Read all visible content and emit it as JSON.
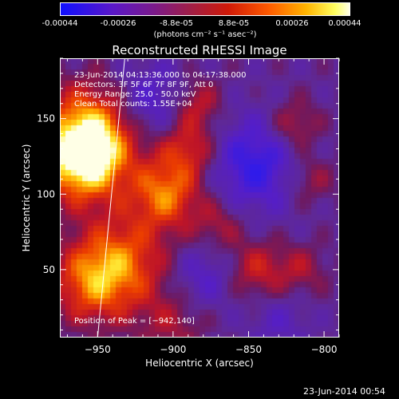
{
  "colorbar": {
    "ticks": [
      "-0.00044",
      "-0.00026",
      "-8.8e-05",
      "8.8e-05",
      "0.00026",
      "0.00044"
    ],
    "units": "(photons cm⁻² s⁻¹ asec⁻²)"
  },
  "chart_data": {
    "type": "heatmap",
    "title": "Reconstructed RHESSI Image",
    "xlabel": "Heliocentric X (arcsec)",
    "ylabel": "Heliocentric Y (arcsec)",
    "xlim": [
      -975,
      -790
    ],
    "ylim": [
      5,
      190
    ],
    "x_ticks": [
      -950,
      -900,
      -850,
      -800
    ],
    "y_ticks": [
      50,
      100,
      150
    ],
    "x_tick_labels": [
      "−950",
      "−900",
      "−850",
      "−800"
    ],
    "y_tick_labels": [
      "50",
      "100",
      "150"
    ],
    "colorscale_range": [
      -0.00044,
      0.00044
    ],
    "annotations": [
      "23-Jun-2014 04:13:36.000 to 04:17:38.000",
      "Detectors: 3F 5F 6F 7F 8F 9F, Att 0",
      "Energy Range: 25.0 - 50.0 keV",
      "Clean    Total counts: 1.55E+04"
    ],
    "peak_label": "Position of Peak = [−942,140]",
    "peak_position": [
      -942,
      140
    ],
    "limb_x_at": [
      [
        -932,
        190
      ],
      [
        -950,
        5
      ]
    ],
    "blobs": [
      {
        "x": -955,
        "y": 140,
        "r": 22,
        "v": 1.0
      },
      {
        "x": -960,
        "y": 120,
        "r": 18,
        "v": 0.85
      },
      {
        "x": -935,
        "y": 55,
        "r": 22,
        "v": 0.7
      },
      {
        "x": -955,
        "y": 40,
        "r": 18,
        "v": 0.55
      },
      {
        "x": -905,
        "y": 100,
        "r": 16,
        "v": 0.75
      },
      {
        "x": -890,
        "y": 130,
        "r": 14,
        "v": 0.55
      },
      {
        "x": -885,
        "y": 160,
        "r": 12,
        "v": 0.45
      },
      {
        "x": -870,
        "y": 80,
        "r": 12,
        "v": 0.35
      },
      {
        "x": -845,
        "y": 50,
        "r": 14,
        "v": 0.45
      },
      {
        "x": -820,
        "y": 145,
        "r": 12,
        "v": 0.45
      },
      {
        "x": -810,
        "y": 110,
        "r": 12,
        "v": 0.35
      },
      {
        "x": -815,
        "y": 50,
        "r": 12,
        "v": 0.3
      },
      {
        "x": -900,
        "y": 15,
        "r": 16,
        "v": 0.3
      },
      {
        "x": -845,
        "y": 120,
        "r": 22,
        "v": -0.6
      },
      {
        "x": -915,
        "y": 160,
        "r": 18,
        "v": -0.45
      },
      {
        "x": -880,
        "y": 45,
        "r": 16,
        "v": -0.35
      },
      {
        "x": -830,
        "y": 15,
        "r": 14,
        "v": -0.25
      }
    ]
  },
  "timestamp": "23-Jun-2014 00:54"
}
